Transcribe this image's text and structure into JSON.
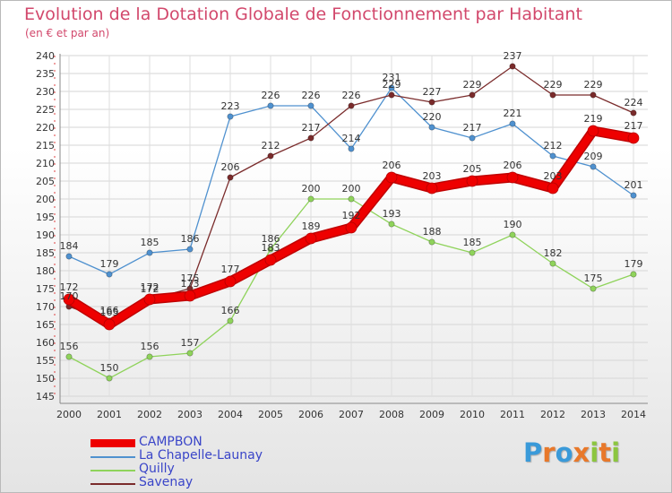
{
  "title": "Evolution de la Dotation Globale de Fonctionnement par Habitant",
  "subtitle": "(en € et par an)",
  "logo": {
    "chars": [
      "P",
      "r",
      "o",
      "x",
      "i",
      "t",
      "i"
    ],
    "colors": [
      "#3a9ad9",
      "#e8782a",
      "#3a9ad9",
      "#e8782a",
      "#8cc63f",
      "#e8782a",
      "#8cc63f"
    ]
  },
  "chart_data": {
    "type": "line",
    "title": "Evolution de la Dotation Globale de Fonctionnement par Habitant",
    "subtitle": "(en € et par an)",
    "xlabel": "",
    "ylabel": "",
    "ylim": [
      145,
      240
    ],
    "yticks": [
      145,
      150,
      155,
      160,
      165,
      170,
      175,
      180,
      185,
      190,
      195,
      200,
      205,
      210,
      215,
      220,
      225,
      230,
      235,
      240
    ],
    "categories": [
      "2000",
      "2001",
      "2002",
      "2003",
      "2004",
      "2005",
      "2006",
      "2007",
      "2008",
      "2009",
      "2010",
      "2011",
      "2012",
      "2013",
      "2014"
    ],
    "legend_position": "bottom-left",
    "series": [
      {
        "name": "La Chapelle-Launay",
        "color": "#4f91cf",
        "values": [
          184,
          179,
          185,
          186,
          223,
          226,
          226,
          214,
          231,
          220,
          217,
          221,
          212,
          209,
          201
        ]
      },
      {
        "name": "Quilly",
        "color": "#8fd35b",
        "values": [
          156,
          150,
          156,
          157,
          166,
          186,
          200,
          200,
          193,
          188,
          185,
          190,
          182,
          175,
          179
        ]
      },
      {
        "name": "Savenay",
        "color": "#7a2b2b",
        "values": [
          170,
          166,
          172,
          175,
          206,
          212,
          217,
          226,
          229,
          227,
          229,
          237,
          229,
          229,
          224
        ]
      },
      {
        "name": "CAMPBON",
        "color": "#ee0000",
        "values": [
          172,
          165,
          172,
          173,
          177,
          183,
          189,
          192,
          206,
          203,
          205,
          206,
          203,
          219,
          217
        ]
      }
    ],
    "legend_order": [
      "CAMPBON",
      "La Chapelle-Launay",
      "Quilly",
      "Savenay"
    ]
  }
}
